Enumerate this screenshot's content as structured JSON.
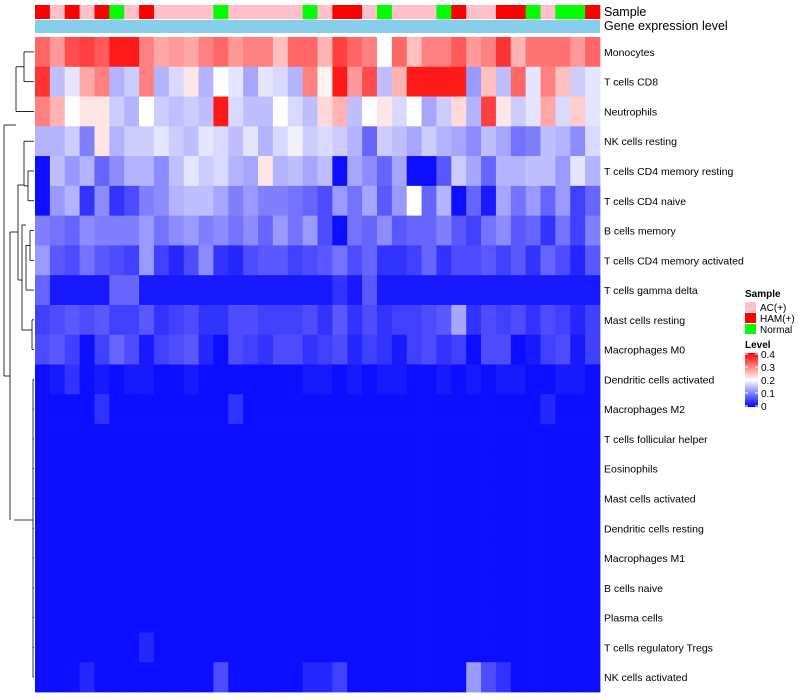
{
  "chart_data": {
    "type": "heatmap",
    "annotation_labels": {
      "sample": "Sample",
      "group": "Gene expression level"
    },
    "rows": [
      "Monocytes",
      "T cells CD8",
      "Neutrophils",
      "NK cells resting",
      "T cells CD4 memory resting",
      "T cells CD4 naive",
      "B cells memory",
      "T cells CD4 memory activated",
      "T cells gamma delta",
      "Mast cells resting",
      "Macrophages M0",
      "Dendritic cells activated",
      "Macrophages M2",
      "T cells follicular helper",
      "Eosinophils",
      "Mast cells activated",
      "Dendritic cells resting",
      "Macrophages M1",
      "B cells naive",
      "Plasma cells",
      "T cells regulatory  Tregs",
      "NK cells activated"
    ],
    "samples": [
      "HAM(+)",
      "AC(+)",
      "HAM(+)",
      "AC(+)",
      "HAM(+)",
      "Normal",
      "AC(+)",
      "HAM(+)",
      "AC(+)",
      "AC(+)",
      "AC(+)",
      "AC(+)",
      "Normal",
      "AC(+)",
      "AC(+)",
      "AC(+)",
      "AC(+)",
      "AC(+)",
      "Normal",
      "AC(+)",
      "HAM(+)",
      "HAM(+)",
      "AC(+)",
      "Normal",
      "AC(+)",
      "AC(+)",
      "AC(+)",
      "Normal",
      "HAM(+)",
      "AC(+)",
      "AC(+)",
      "HAM(+)",
      "HAM(+)",
      "Normal",
      "AC(+)",
      "Normal",
      "Normal",
      "HAM(+)"
    ],
    "sample_colors": {
      "AC(+)": "#FFC0CB",
      "HAM(+)": "#FF0000",
      "Normal": "#00FF00"
    },
    "group_color": "#87CEEB",
    "scale": {
      "min": 0,
      "mid": 0.2,
      "max": 0.4,
      "low_color": "#0000FF",
      "mid_color": "#FFFFFF",
      "high_color": "#FF0000"
    },
    "values": [
      [
        0.32,
        0.28,
        0.34,
        0.35,
        0.33,
        0.38,
        0.38,
        0.3,
        0.27,
        0.28,
        0.27,
        0.3,
        0.32,
        0.28,
        0.3,
        0.3,
        0.25,
        0.32,
        0.32,
        0.26,
        0.35,
        0.32,
        0.3,
        0.2,
        0.32,
        0.25,
        0.3,
        0.3,
        0.33,
        0.28,
        0.3,
        0.36,
        0.26,
        0.31,
        0.31,
        0.31,
        0.28,
        0.32
      ],
      [
        0.36,
        0.15,
        0.18,
        0.27,
        0.3,
        0.14,
        0.16,
        0.3,
        0.14,
        0.17,
        0.22,
        0.14,
        0.2,
        0.18,
        0.13,
        0.18,
        0.17,
        0.14,
        0.3,
        0.21,
        0.38,
        0.28,
        0.34,
        0.15,
        0.26,
        0.38,
        0.38,
        0.38,
        0.38,
        0.12,
        0.25,
        0.15,
        0.32,
        0.18,
        0.3,
        0.25,
        0.16,
        0.18
      ],
      [
        0.3,
        0.26,
        0.2,
        0.22,
        0.22,
        0.16,
        0.14,
        0.2,
        0.16,
        0.15,
        0.16,
        0.15,
        0.38,
        0.17,
        0.15,
        0.15,
        0.2,
        0.17,
        0.15,
        0.23,
        0.26,
        0.15,
        0.2,
        0.22,
        0.17,
        0.2,
        0.13,
        0.16,
        0.23,
        0.14,
        0.35,
        0.22,
        0.16,
        0.18,
        0.27,
        0.17,
        0.24,
        0.18
      ],
      [
        0.14,
        0.14,
        0.16,
        0.1,
        0.22,
        0.14,
        0.16,
        0.16,
        0.18,
        0.16,
        0.15,
        0.18,
        0.17,
        0.15,
        0.18,
        0.14,
        0.17,
        0.19,
        0.16,
        0.17,
        0.16,
        0.14,
        0.08,
        0.16,
        0.15,
        0.13,
        0.16,
        0.14,
        0.13,
        0.11,
        0.15,
        0.13,
        0.09,
        0.1,
        0.15,
        0.14,
        0.11,
        0.17
      ],
      [
        0.01,
        0.15,
        0.12,
        0.14,
        0.08,
        0.11,
        0.14,
        0.14,
        0.11,
        0.15,
        0.18,
        0.16,
        0.17,
        0.14,
        0.13,
        0.22,
        0.14,
        0.15,
        0.13,
        0.15,
        0.01,
        0.13,
        0.11,
        0.08,
        0.13,
        0.01,
        0.01,
        0.07,
        0.16,
        0.13,
        0.08,
        0.14,
        0.14,
        0.15,
        0.15,
        0.12,
        0.18,
        0.14
      ],
      [
        0.01,
        0.12,
        0.14,
        0.04,
        0.11,
        0.04,
        0.06,
        0.1,
        0.11,
        0.14,
        0.15,
        0.15,
        0.13,
        0.1,
        0.12,
        0.1,
        0.1,
        0.09,
        0.08,
        0.06,
        0.12,
        0.09,
        0.13,
        0.07,
        0.12,
        0.2,
        0.08,
        0.14,
        0.01,
        0.08,
        0.02,
        0.13,
        0.09,
        0.12,
        0.08,
        0.12,
        0.05,
        0.08
      ],
      [
        0.1,
        0.09,
        0.08,
        0.11,
        0.1,
        0.1,
        0.1,
        0.12,
        0.09,
        0.11,
        0.12,
        0.1,
        0.11,
        0.09,
        0.11,
        0.08,
        0.12,
        0.09,
        0.12,
        0.06,
        0.01,
        0.09,
        0.08,
        0.11,
        0.07,
        0.08,
        0.08,
        0.1,
        0.07,
        0.05,
        0.09,
        0.11,
        0.07,
        0.08,
        0.04,
        0.09,
        0.05,
        0.1
      ],
      [
        0.12,
        0.07,
        0.06,
        0.09,
        0.07,
        0.06,
        0.05,
        0.12,
        0.05,
        0.03,
        0.06,
        0.11,
        0.04,
        0.03,
        0.06,
        0.07,
        0.07,
        0.05,
        0.06,
        0.07,
        0.09,
        0.06,
        0.08,
        0.04,
        0.04,
        0.05,
        0.08,
        0.04,
        0.06,
        0.06,
        0.07,
        0.05,
        0.07,
        0.04,
        0.08,
        0.06,
        0.03,
        0.07
      ],
      [
        0.08,
        0.02,
        0.02,
        0.02,
        0.02,
        0.08,
        0.08,
        0.02,
        0.02,
        0.02,
        0.02,
        0.02,
        0.02,
        0.02,
        0.02,
        0.02,
        0.02,
        0.02,
        0.02,
        0.02,
        0.04,
        0.02,
        0.07,
        0.02,
        0.02,
        0.02,
        0.02,
        0.02,
        0.02,
        0.02,
        0.02,
        0.02,
        0.02,
        0.02,
        0.02,
        0.02,
        0.02,
        0.02
      ],
      [
        0.05,
        0.06,
        0.07,
        0.06,
        0.07,
        0.05,
        0.05,
        0.07,
        0.04,
        0.05,
        0.06,
        0.04,
        0.04,
        0.06,
        0.06,
        0.05,
        0.05,
        0.05,
        0.06,
        0.04,
        0.07,
        0.04,
        0.06,
        0.04,
        0.05,
        0.05,
        0.06,
        0.07,
        0.13,
        0.04,
        0.06,
        0.05,
        0.06,
        0.04,
        0.06,
        0.05,
        0.03,
        0.05
      ],
      [
        0.06,
        0.07,
        0.05,
        0.01,
        0.05,
        0.08,
        0.06,
        0.02,
        0.05,
        0.06,
        0.07,
        0.03,
        0.01,
        0.06,
        0.05,
        0.04,
        0.06,
        0.06,
        0.04,
        0.05,
        0.06,
        0.03,
        0.05,
        0.04,
        0.02,
        0.05,
        0.06,
        0.04,
        0.05,
        0.01,
        0.06,
        0.06,
        0.01,
        0.02,
        0.05,
        0.06,
        0.02,
        0.05
      ],
      [
        0.01,
        0.02,
        0.04,
        0.01,
        0.02,
        0.01,
        0.02,
        0.02,
        0.01,
        0.01,
        0.02,
        0.01,
        0.01,
        0.01,
        0.01,
        0.01,
        0.01,
        0.01,
        0.02,
        0.02,
        0.01,
        0.02,
        0.01,
        0.02,
        0.02,
        0.01,
        0.01,
        0.02,
        0.01,
        0.02,
        0.01,
        0.02,
        0.02,
        0.01,
        0.01,
        0.02,
        0.02,
        0.01
      ],
      [
        0.01,
        0.01,
        0.01,
        0.01,
        0.04,
        0.01,
        0.01,
        0.01,
        0.01,
        0.01,
        0.01,
        0.01,
        0.01,
        0.04,
        0.01,
        0.01,
        0.01,
        0.01,
        0.01,
        0.01,
        0.01,
        0.01,
        0.01,
        0.01,
        0.01,
        0.01,
        0.01,
        0.01,
        0.01,
        0.01,
        0.01,
        0.01,
        0.01,
        0.01,
        0.03,
        0.01,
        0.01,
        0.01
      ],
      [
        0.01,
        0.01,
        0.01,
        0.01,
        0.01,
        0.01,
        0.01,
        0.01,
        0.01,
        0.01,
        0.01,
        0.01,
        0.01,
        0.01,
        0.01,
        0.01,
        0.01,
        0.01,
        0.01,
        0.01,
        0.01,
        0.01,
        0.01,
        0.01,
        0.01,
        0.01,
        0.01,
        0.01,
        0.01,
        0.01,
        0.01,
        0.01,
        0.01,
        0.01,
        0.01,
        0.01,
        0.01,
        0.01
      ],
      [
        0.01,
        0.01,
        0.01,
        0.01,
        0.01,
        0.01,
        0.01,
        0.01,
        0.01,
        0.01,
        0.01,
        0.01,
        0.01,
        0.01,
        0.01,
        0.01,
        0.01,
        0.01,
        0.01,
        0.01,
        0.01,
        0.01,
        0.01,
        0.01,
        0.01,
        0.01,
        0.01,
        0.01,
        0.01,
        0.01,
        0.01,
        0.01,
        0.01,
        0.01,
        0.01,
        0.01,
        0.01,
        0.01
      ],
      [
        0.01,
        0.01,
        0.01,
        0.01,
        0.01,
        0.01,
        0.01,
        0.01,
        0.01,
        0.01,
        0.01,
        0.01,
        0.01,
        0.01,
        0.01,
        0.01,
        0.01,
        0.01,
        0.01,
        0.01,
        0.01,
        0.01,
        0.01,
        0.01,
        0.01,
        0.01,
        0.01,
        0.01,
        0.01,
        0.01,
        0.01,
        0.01,
        0.01,
        0.01,
        0.01,
        0.01,
        0.01,
        0.01
      ],
      [
        0.01,
        0.01,
        0.01,
        0.01,
        0.01,
        0.01,
        0.01,
        0.01,
        0.01,
        0.01,
        0.01,
        0.01,
        0.01,
        0.01,
        0.01,
        0.01,
        0.01,
        0.01,
        0.01,
        0.01,
        0.01,
        0.01,
        0.01,
        0.01,
        0.01,
        0.01,
        0.01,
        0.01,
        0.01,
        0.01,
        0.01,
        0.01,
        0.01,
        0.01,
        0.01,
        0.01,
        0.01,
        0.01
      ],
      [
        0.01,
        0.01,
        0.01,
        0.01,
        0.01,
        0.01,
        0.01,
        0.01,
        0.01,
        0.01,
        0.01,
        0.01,
        0.01,
        0.01,
        0.01,
        0.01,
        0.01,
        0.01,
        0.01,
        0.01,
        0.01,
        0.01,
        0.01,
        0.01,
        0.01,
        0.01,
        0.01,
        0.01,
        0.01,
        0.01,
        0.01,
        0.01,
        0.01,
        0.01,
        0.01,
        0.01,
        0.01,
        0.01
      ],
      [
        0.01,
        0.01,
        0.01,
        0.01,
        0.01,
        0.01,
        0.01,
        0.01,
        0.01,
        0.01,
        0.01,
        0.01,
        0.01,
        0.01,
        0.01,
        0.01,
        0.01,
        0.01,
        0.01,
        0.01,
        0.01,
        0.01,
        0.01,
        0.01,
        0.01,
        0.01,
        0.01,
        0.01,
        0.01,
        0.01,
        0.01,
        0.01,
        0.01,
        0.01,
        0.01,
        0.01,
        0.01,
        0.01
      ],
      [
        0.01,
        0.01,
        0.01,
        0.01,
        0.01,
        0.01,
        0.01,
        0.01,
        0.01,
        0.01,
        0.01,
        0.01,
        0.01,
        0.01,
        0.01,
        0.01,
        0.01,
        0.01,
        0.01,
        0.01,
        0.01,
        0.01,
        0.01,
        0.01,
        0.01,
        0.01,
        0.01,
        0.01,
        0.01,
        0.01,
        0.01,
        0.01,
        0.01,
        0.01,
        0.01,
        0.01,
        0.01,
        0.01
      ],
      [
        0.01,
        0.01,
        0.01,
        0.01,
        0.01,
        0.01,
        0.01,
        0.03,
        0.01,
        0.01,
        0.01,
        0.01,
        0.01,
        0.01,
        0.01,
        0.01,
        0.01,
        0.01,
        0.01,
        0.01,
        0.01,
        0.01,
        0.01,
        0.01,
        0.01,
        0.01,
        0.01,
        0.01,
        0.01,
        0.01,
        0.01,
        0.01,
        0.01,
        0.01,
        0.01,
        0.01,
        0.01,
        0.01
      ],
      [
        0.01,
        0.01,
        0.01,
        0.03,
        0.01,
        0.01,
        0.01,
        0.01,
        0.01,
        0.01,
        0.01,
        0.01,
        0.06,
        0.01,
        0.01,
        0.01,
        0.01,
        0.01,
        0.03,
        0.03,
        0.05,
        0.01,
        0.01,
        0.01,
        0.01,
        0.01,
        0.01,
        0.01,
        0.01,
        0.12,
        0.06,
        0.04,
        0.01,
        0.01,
        0.01,
        0.01,
        0.01,
        0.01
      ]
    ],
    "legend": {
      "sample": {
        "title": "Sample",
        "items": [
          "AC(+)",
          "HAM(+)",
          "Normal"
        ]
      },
      "level": {
        "title": "Level",
        "ticks": [
          "0.4",
          "0.3",
          "0.2",
          "0.1",
          "0"
        ]
      }
    }
  }
}
